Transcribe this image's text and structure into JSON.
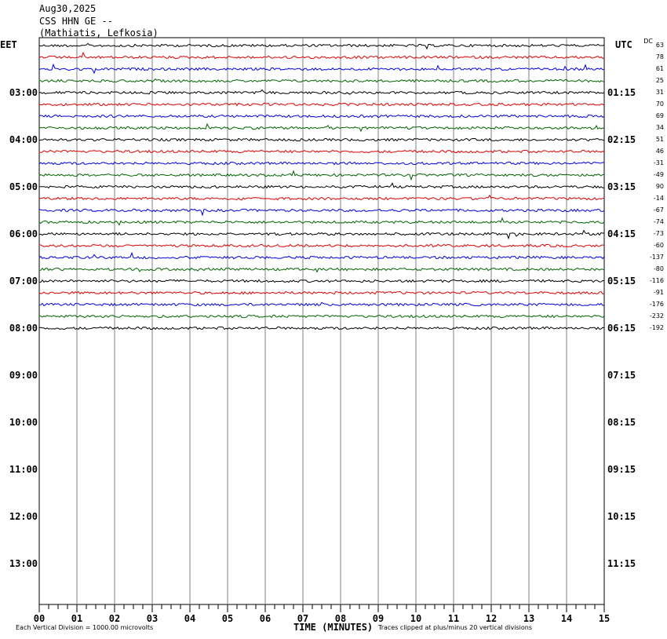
{
  "header": {
    "date": "Aug30,2025",
    "station": "CSS HHN GE --",
    "location": "(Mathiatis, Lefkosia)"
  },
  "left_tz": "EET",
  "right_tz": "UTC",
  "dc_label": "DC",
  "xlabel": "TIME (MINUTES)",
  "footer_left": "Each Vertical Division = 1000.00 microvolts",
  "footer_right": "Traces clipped at plus/minus 20 vertical divisions",
  "chart_data": {
    "type": "line",
    "title": "Aug30,2025 CSS HHN GE -- (Mathiatis, Lefkosia)",
    "xlabel": "TIME (MINUTES)",
    "ylabel": "",
    "xlim": [
      0,
      15
    ],
    "x_ticks": [
      "00",
      "01",
      "02",
      "03",
      "04",
      "05",
      "06",
      "07",
      "08",
      "09",
      "10",
      "11",
      "12",
      "13",
      "14",
      "15"
    ],
    "left_hour_labels": [
      "03:00",
      "04:00",
      "05:00",
      "06:00",
      "07:00",
      "08:00",
      "09:00",
      "10:00",
      "11:00",
      "12:00",
      "13:00"
    ],
    "right_hour_labels": [
      "01:15",
      "02:15",
      "03:15",
      "04:15",
      "05:15",
      "06:15",
      "07:15",
      "08:15",
      "09:15",
      "10:15",
      "11:15"
    ],
    "trace_colors": [
      "#000000",
      "#e00000",
      "#0000e0",
      "#006400"
    ],
    "dc_offsets": [
      63,
      78,
      61,
      25,
      31,
      70,
      69,
      34,
      51,
      46,
      -31,
      -49,
      90,
      -14,
      -67,
      -74,
      -73,
      -60,
      -137,
      -80,
      -116,
      -91,
      -176,
      -232,
      -192
    ],
    "grid": true
  }
}
